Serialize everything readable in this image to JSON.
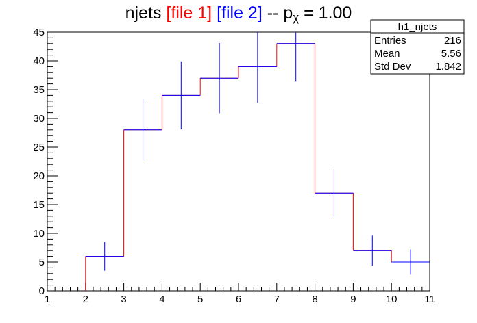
{
  "chart_data": {
    "type": "histogram",
    "title": {
      "prefix": "njets ",
      "file1": "[file 1]",
      "file2": "[file 2]",
      "suffix": " -- p",
      "subscript": "χ",
      "value": " = 1.00",
      "colors": {
        "text": "#000000",
        "file1": "#ff0000",
        "file2": "#0000ff"
      }
    },
    "xlabel": "",
    "ylabel": "",
    "xlim": [
      1,
      11
    ],
    "ylim": [
      0,
      45
    ],
    "x_ticks": [
      "1",
      "2",
      "3",
      "4",
      "5",
      "6",
      "7",
      "8",
      "9",
      "10",
      "11"
    ],
    "y_ticks": [
      "0",
      "5",
      "10",
      "15",
      "20",
      "25",
      "30",
      "35",
      "40",
      "45"
    ],
    "bin_edges": [
      2,
      3,
      4,
      5,
      6,
      7,
      8,
      9,
      10,
      11
    ],
    "series": [
      {
        "name": "file 1",
        "style": "step",
        "color": "#ff0000",
        "values": [
          6,
          28,
          34,
          37,
          39,
          43,
          17,
          7,
          5
        ]
      },
      {
        "name": "file 2",
        "style": "errorbar",
        "color": "#0000ff",
        "values": [
          6,
          28,
          34,
          37,
          39,
          43,
          17,
          7,
          5
        ],
        "err_low": [
          2.5,
          5.3,
          5.9,
          6.1,
          6.3,
          6.6,
          4.1,
          2.6,
          2.2
        ],
        "err_high": [
          2.5,
          5.3,
          5.9,
          6.1,
          6.3,
          6.6,
          4.1,
          2.6,
          2.2
        ]
      }
    ],
    "stats_box": {
      "title": "h1_njets",
      "rows": [
        {
          "label": "Entries",
          "value": "216"
        },
        {
          "label": "Mean",
          "value": "5.56"
        },
        {
          "label": "Std Dev",
          "value": "1.842"
        }
      ]
    },
    "grid": false,
    "legend": "none"
  }
}
